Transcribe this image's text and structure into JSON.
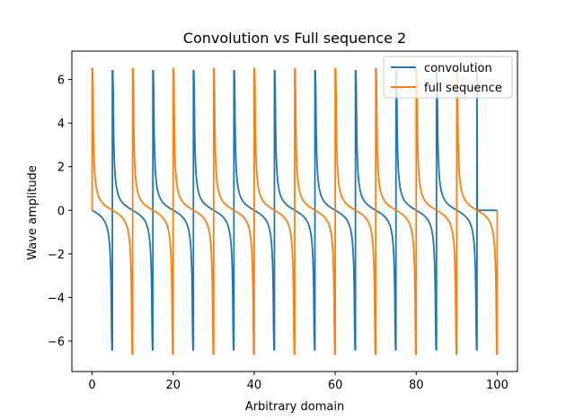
{
  "chart_data": {
    "type": "line",
    "title": "Convolution vs Full sequence 2",
    "xlabel": "Arbitrary domain",
    "ylabel": "Wave amplitude",
    "xlim": [
      -5,
      105
    ],
    "ylim": [
      -7.4,
      7.3
    ],
    "xticks": [
      0,
      20,
      40,
      60,
      80,
      100
    ],
    "yticks": [
      -6,
      -4,
      -2,
      0,
      2,
      4,
      6
    ],
    "grid": false,
    "legend_position": "upper right",
    "series": [
      {
        "name": "convolution",
        "color": "#1f77b4",
        "description_period": 10,
        "discontinuities_x": [
          5,
          15,
          25,
          35,
          45,
          55,
          65,
          75,
          85,
          95
        ],
        "peak": 6.4,
        "trough": -6.4,
        "x_range": [
          0,
          100
        ],
        "tail_flat_from": 95
      },
      {
        "name": "full sequence",
        "color": "#ff7f0e",
        "discontinuities_x": [
          0,
          10,
          20,
          30,
          40,
          50,
          60,
          70,
          80,
          90,
          100
        ],
        "peak": 6.5,
        "trough": -6.6,
        "x_range": [
          0,
          100
        ]
      }
    ]
  }
}
